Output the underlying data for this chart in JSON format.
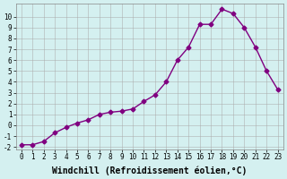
{
  "line_color": "#800080",
  "marker_color": "#800080",
  "bg_color": "#d4f0f0",
  "grid_color": "#aaaaaa",
  "xlabel": "Windchill (Refroidissement éolien,°C)",
  "ylim": [
    -2,
    11
  ],
  "xlim": [
    0,
    23
  ],
  "yticks": [
    -2,
    -1,
    0,
    1,
    2,
    3,
    4,
    5,
    6,
    7,
    8,
    9,
    10
  ],
  "xticks": [
    0,
    1,
    2,
    3,
    4,
    5,
    6,
    7,
    8,
    9,
    10,
    11,
    12,
    13,
    14,
    15,
    16,
    17,
    18,
    19,
    20,
    21,
    22,
    23
  ],
  "xtick_labels": [
    "0",
    "1",
    "2",
    "3",
    "4",
    "5",
    "6",
    "7",
    "8",
    "9",
    "10",
    "11",
    "12",
    "13",
    "14",
    "15",
    "16",
    "17",
    "18",
    "19",
    "20",
    "21",
    "22",
    "23"
  ],
  "title_fontsize": 7,
  "tick_fontsize": 5.5,
  "data_x": [
    0,
    1,
    2,
    3,
    4,
    5,
    6,
    7,
    8,
    9,
    10,
    11,
    12,
    13,
    14,
    15,
    16,
    17,
    18,
    19,
    20,
    21,
    22,
    23
  ],
  "data_y": [
    -1.8,
    -1.8,
    -1.5,
    -0.7,
    -0.2,
    0.2,
    0.5,
    1.0,
    1.2,
    1.3,
    1.5,
    2.2,
    2.8,
    4.0,
    6.0,
    7.2,
    9.3,
    9.3,
    10.7,
    10.3,
    9.0,
    7.2,
    5.0,
    3.3
  ]
}
